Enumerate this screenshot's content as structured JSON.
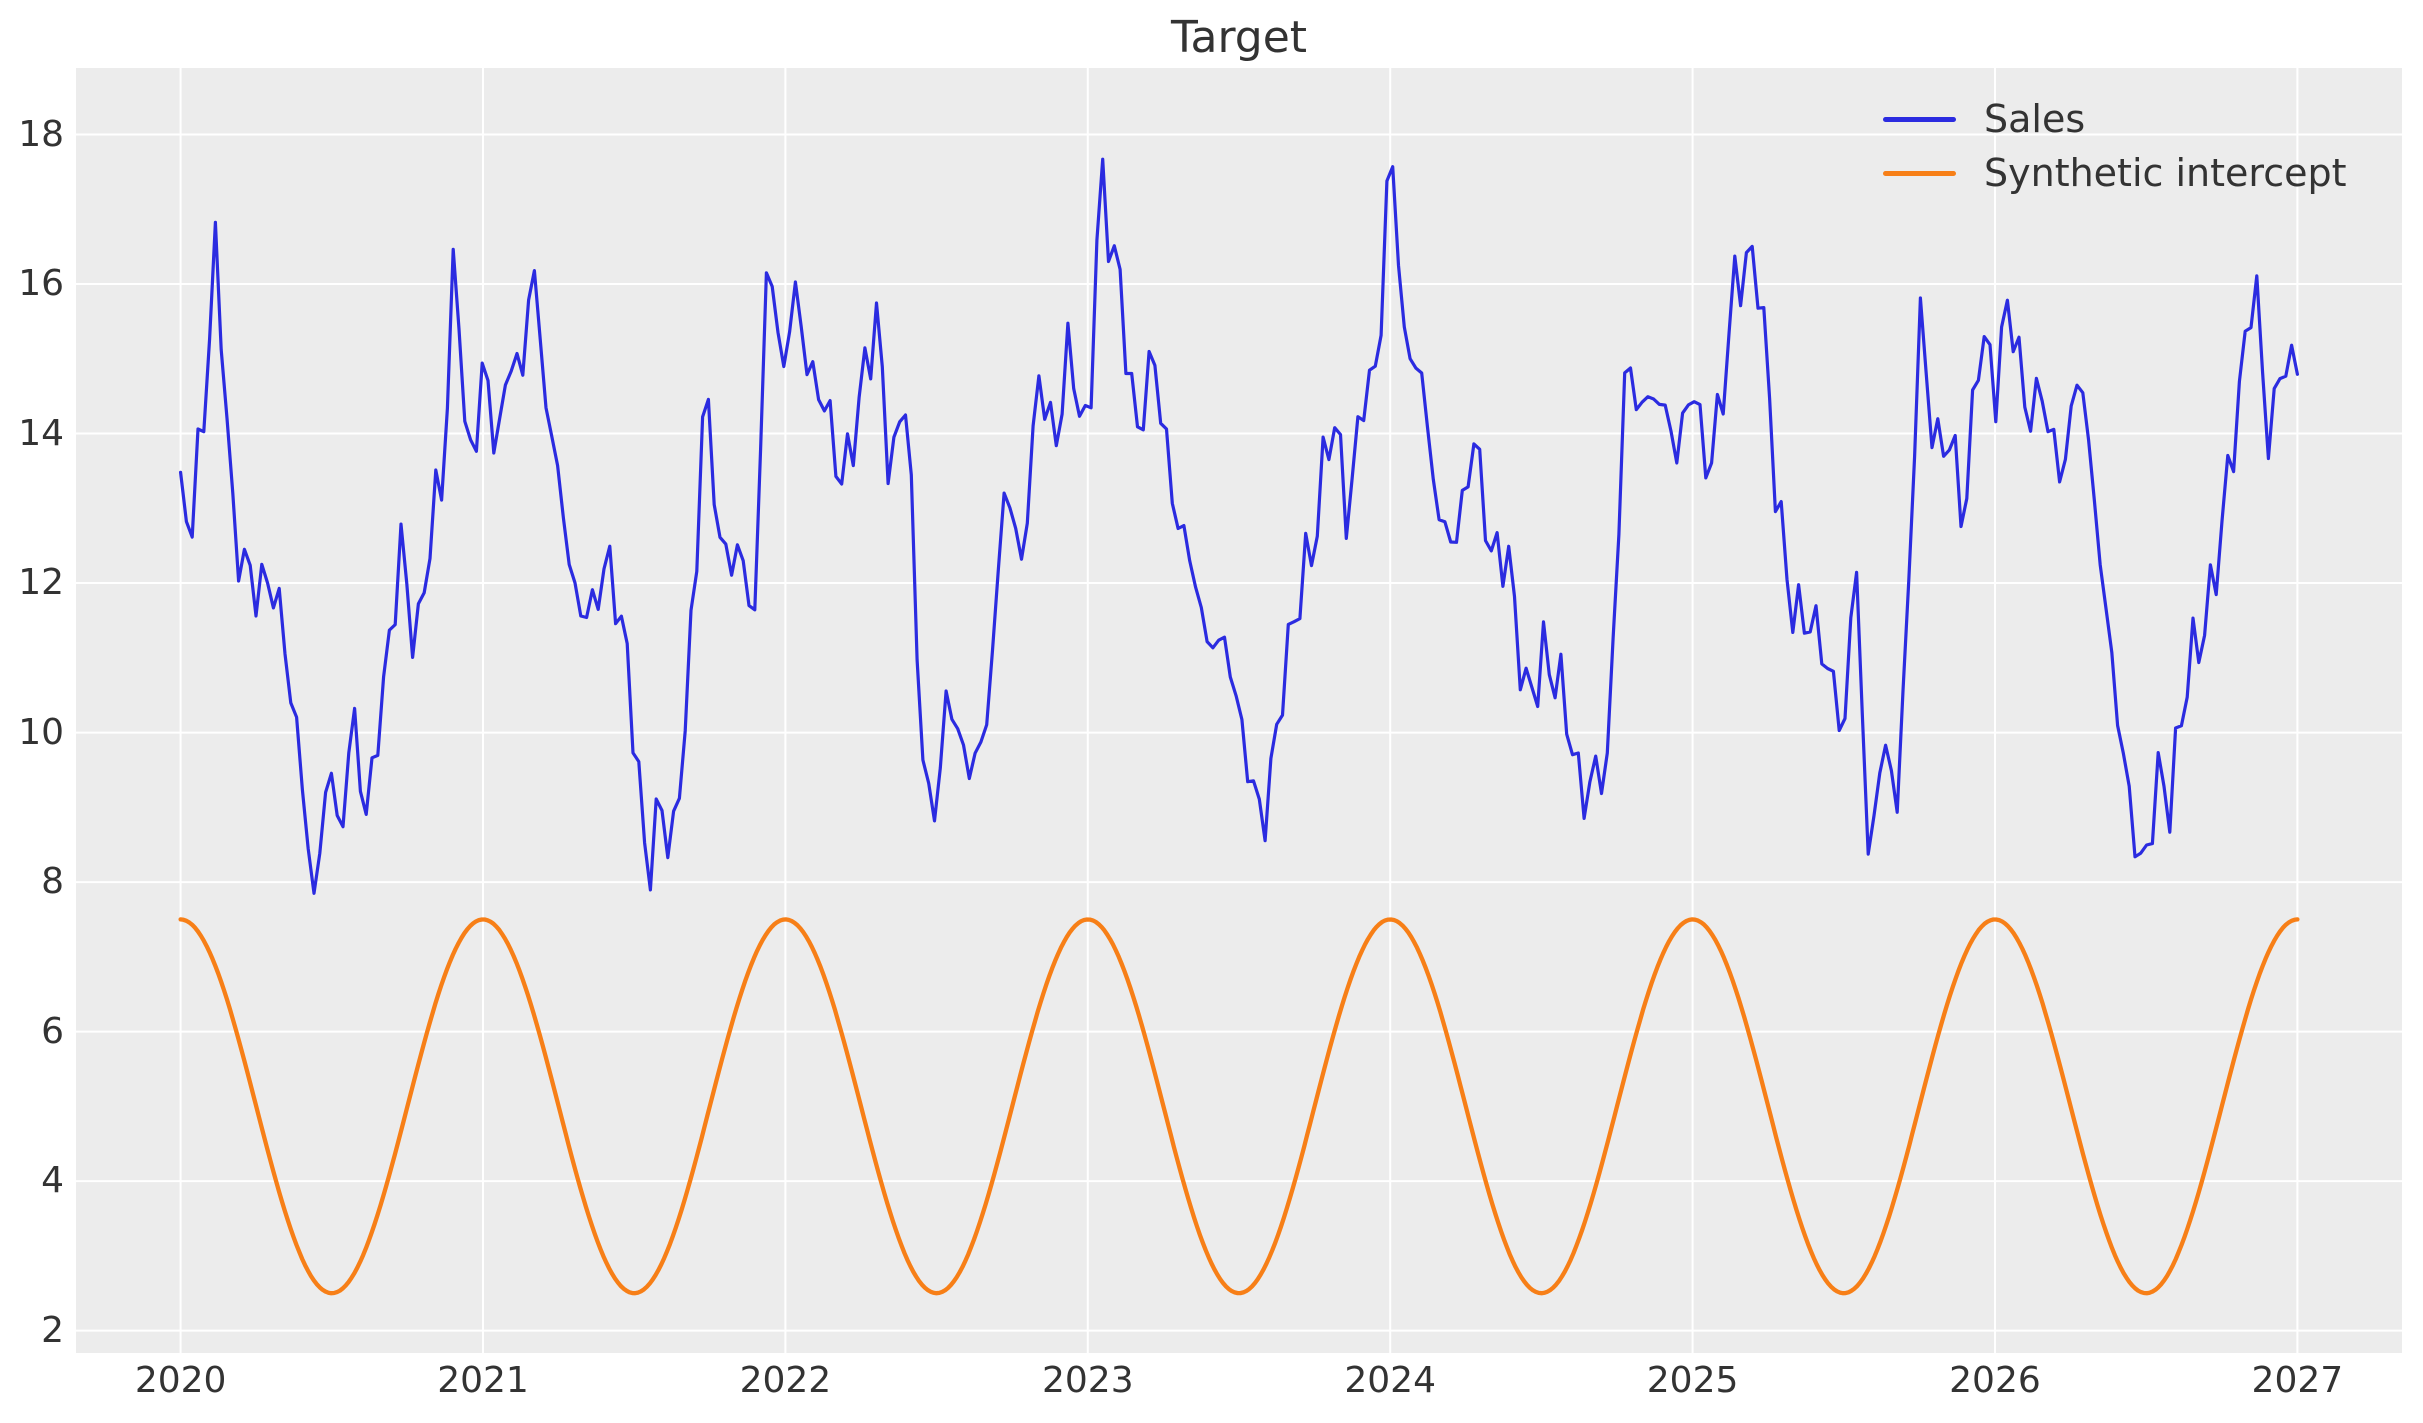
{
  "title": "Target",
  "colors": {
    "sales_line": "#2b2be0",
    "synthetic_line": "#f77f17",
    "plot_background": "#ececec",
    "gridline": "#ffffff",
    "text": "#333333",
    "figure_background": "#ffffff"
  },
  "legend": {
    "items": [
      {
        "label": "Sales"
      },
      {
        "label": "Synthetic intercept"
      }
    ]
  },
  "chart_data": {
    "type": "line",
    "title": "Target",
    "xlabel": "",
    "ylabel": "",
    "xlim": [
      2019.654,
      2027.346
    ],
    "ylim": [
      1.7,
      18.89
    ],
    "xticks": [
      "2020",
      "2021",
      "2022",
      "2023",
      "2024",
      "2025",
      "2026",
      "2027"
    ],
    "xtick_values": [
      2020,
      2021,
      2022,
      2023,
      2024,
      2025,
      2026,
      2027
    ],
    "yticks": [
      "2",
      "4",
      "6",
      "8",
      "10",
      "12",
      "14",
      "16",
      "18"
    ],
    "ytick_values": [
      2,
      4,
      6,
      8,
      10,
      12,
      14,
      16,
      18
    ],
    "grid": true,
    "legend_position": "upper right",
    "series": [
      {
        "name": "Sales",
        "color": "#2b2be0",
        "linewidth": 3.2,
        "sampling": "weekly",
        "n_points": 366,
        "t_start": 2020.0,
        "t_end": 2027.0,
        "clip": [
          7.85,
          18.02
        ],
        "noise": {
          "amplitude": 0.45,
          "components": [
            [
              1.0,
              12.9898,
              0.4
            ],
            [
              0.6,
              4.147,
              1.3
            ],
            [
              0.5,
              77.7,
              0.7
            ]
          ]
        },
        "anchor_points": [
          [
            2020.0,
            12.9
          ],
          [
            2020.04,
            12.4
          ],
          [
            2020.08,
            14.1
          ],
          [
            2020.12,
            16.6
          ],
          [
            2020.17,
            13.3
          ],
          [
            2020.22,
            12.5
          ],
          [
            2020.27,
            11.9
          ],
          [
            2020.31,
            11.6
          ],
          [
            2020.36,
            10.3
          ],
          [
            2020.41,
            9.1
          ],
          [
            2020.44,
            7.95
          ],
          [
            2020.49,
            10.15
          ],
          [
            2020.53,
            8.7
          ],
          [
            2020.57,
            10.2
          ],
          [
            2020.61,
            8.3
          ],
          [
            2020.66,
            9.9
          ],
          [
            2020.73,
            12.85
          ],
          [
            2020.78,
            11.5
          ],
          [
            2020.82,
            12.7
          ],
          [
            2020.87,
            13.2
          ],
          [
            2020.91,
            16.2
          ],
          [
            2020.95,
            13.0
          ],
          [
            2021.0,
            15.1
          ],
          [
            2021.05,
            14.3
          ],
          [
            2021.09,
            15.4
          ],
          [
            2021.13,
            14.6
          ],
          [
            2021.16,
            16.1
          ],
          [
            2021.21,
            13.9
          ],
          [
            2021.25,
            13.3
          ],
          [
            2021.3,
            12.2
          ],
          [
            2021.36,
            12.0
          ],
          [
            2021.41,
            12.3
          ],
          [
            2021.48,
            10.4
          ],
          [
            2021.54,
            8.05
          ],
          [
            2021.59,
            9.4
          ],
          [
            2021.63,
            8.9
          ],
          [
            2021.7,
            11.7
          ],
          [
            2021.73,
            14.3
          ],
          [
            2021.79,
            11.9
          ],
          [
            2021.85,
            12.6
          ],
          [
            2021.9,
            12.0
          ],
          [
            2021.94,
            16.9
          ],
          [
            2021.99,
            14.6
          ],
          [
            2022.03,
            15.5
          ],
          [
            2022.08,
            14.4
          ],
          [
            2022.13,
            14.6
          ],
          [
            2022.19,
            13.8
          ],
          [
            2022.24,
            14.5
          ],
          [
            2022.3,
            15.2
          ],
          [
            2022.35,
            12.9
          ],
          [
            2022.4,
            14.7
          ],
          [
            2022.44,
            11.0
          ],
          [
            2022.48,
            9.1
          ],
          [
            2022.54,
            10.6
          ],
          [
            2022.6,
            9.0
          ],
          [
            2022.66,
            9.6
          ],
          [
            2022.73,
            13.9
          ],
          [
            2022.78,
            12.6
          ],
          [
            2022.84,
            14.7
          ],
          [
            2022.89,
            13.3
          ],
          [
            2022.94,
            14.9
          ],
          [
            2023.0,
            14.0
          ],
          [
            2023.04,
            18.0
          ],
          [
            2023.11,
            15.9
          ],
          [
            2023.16,
            13.5
          ],
          [
            2023.22,
            14.7
          ],
          [
            2023.28,
            13.4
          ],
          [
            2023.34,
            12.8
          ],
          [
            2023.4,
            11.1
          ],
          [
            2023.45,
            10.8
          ],
          [
            2023.52,
            9.55
          ],
          [
            2023.58,
            9.1
          ],
          [
            2023.64,
            10.9
          ],
          [
            2023.68,
            11.5
          ],
          [
            2023.75,
            12.1
          ],
          [
            2023.81,
            14.2
          ],
          [
            2023.86,
            13.2
          ],
          [
            2023.91,
            15.0
          ],
          [
            2023.96,
            14.9
          ],
          [
            2024.0,
            17.7
          ],
          [
            2024.05,
            14.6
          ],
          [
            2024.1,
            14.8
          ],
          [
            2024.16,
            13.3
          ],
          [
            2024.22,
            12.9
          ],
          [
            2024.28,
            13.7
          ],
          [
            2024.33,
            11.9
          ],
          [
            2024.39,
            12.3
          ],
          [
            2024.45,
            10.9
          ],
          [
            2024.51,
            11.3
          ],
          [
            2024.57,
            10.2
          ],
          [
            2024.63,
            8.7
          ],
          [
            2024.67,
            9.3
          ],
          [
            2024.72,
            10.0
          ],
          [
            2024.78,
            15.5
          ],
          [
            2024.82,
            14.3
          ],
          [
            2024.89,
            14.0
          ],
          [
            2024.95,
            13.6
          ],
          [
            2025.0,
            15.1
          ],
          [
            2025.05,
            13.9
          ],
          [
            2025.1,
            14.6
          ],
          [
            2025.14,
            15.7
          ],
          [
            2025.22,
            15.9
          ],
          [
            2025.28,
            13.4
          ],
          [
            2025.33,
            12.1
          ],
          [
            2025.39,
            11.5
          ],
          [
            2025.45,
            10.4
          ],
          [
            2025.5,
            9.6
          ],
          [
            2025.54,
            12.6
          ],
          [
            2025.58,
            8.7
          ],
          [
            2025.63,
            10.3
          ],
          [
            2025.68,
            9.0
          ],
          [
            2025.72,
            12.0
          ],
          [
            2025.75,
            15.2
          ],
          [
            2025.8,
            13.6
          ],
          [
            2025.85,
            14.3
          ],
          [
            2025.9,
            13.3
          ],
          [
            2025.95,
            15.5
          ],
          [
            2026.0,
            14.2
          ],
          [
            2026.05,
            15.4
          ],
          [
            2026.1,
            14.3
          ],
          [
            2026.16,
            15.0
          ],
          [
            2026.22,
            13.6
          ],
          [
            2026.28,
            14.6
          ],
          [
            2026.34,
            12.2
          ],
          [
            2026.4,
            10.6
          ],
          [
            2026.45,
            9.4
          ],
          [
            2026.49,
            8.4
          ],
          [
            2026.54,
            9.3
          ],
          [
            2026.58,
            8.6
          ],
          [
            2026.64,
            10.6
          ],
          [
            2026.7,
            11.8
          ],
          [
            2026.76,
            13.5
          ],
          [
            2026.81,
            14.6
          ],
          [
            2026.86,
            15.8
          ],
          [
            2026.9,
            13.4
          ],
          [
            2026.94,
            14.6
          ],
          [
            2026.98,
            15.3
          ],
          [
            2027.0,
            15.2
          ]
        ]
      },
      {
        "name": "Synthetic intercept",
        "color": "#f77f17",
        "linewidth": 4.3,
        "model": {
          "type": "cosine",
          "mean": 5.0,
          "amplitude": 2.5,
          "period_years": 1.0,
          "peak_at": 2020.0
        },
        "t_start": 2020.0,
        "t_end": 2027.0,
        "n_points": 732
      }
    ]
  }
}
